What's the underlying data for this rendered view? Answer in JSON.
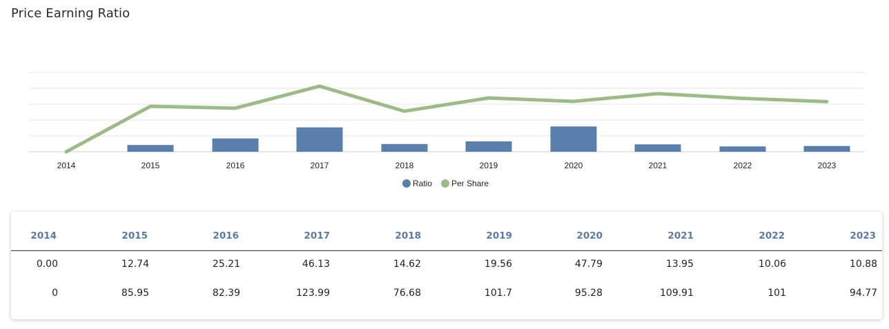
{
  "page": {
    "title": "Price Earning Ratio"
  },
  "colors": {
    "ratio": "#5b7fad",
    "per_share": "#9dbb87",
    "header_text": "#5b7aa6"
  },
  "chart_data": {
    "type": "bar",
    "categories": [
      "2014",
      "2015",
      "2016",
      "2017",
      "2018",
      "2019",
      "2020",
      "2021",
      "2022",
      "2023"
    ],
    "series": [
      {
        "name": "Ratio",
        "type": "bar",
        "values": [
          0.0,
          12.74,
          25.21,
          46.13,
          14.62,
          19.56,
          47.79,
          13.95,
          10.06,
          10.88
        ]
      },
      {
        "name": "Per Share",
        "type": "line",
        "values": [
          0,
          85.95,
          82.39,
          123.99,
          76.68,
          101.7,
          95.28,
          109.91,
          101,
          94.77
        ]
      }
    ],
    "ylim": [
      0,
      150
    ],
    "grid": true,
    "legend": "bottom-center"
  },
  "table": {
    "headers": [
      "2014",
      "2015",
      "2016",
      "2017",
      "2018",
      "2019",
      "2020",
      "2021",
      "2022",
      "2023"
    ],
    "ratio_row": [
      "0.00",
      "12.74",
      "25.21",
      "46.13",
      "14.62",
      "19.56",
      "47.79",
      "13.95",
      "10.06",
      "10.88"
    ],
    "per_share_row": [
      "0",
      "85.95",
      "82.39",
      "123.99",
      "76.68",
      "101.7",
      "95.28",
      "109.91",
      "101",
      "94.77"
    ]
  }
}
